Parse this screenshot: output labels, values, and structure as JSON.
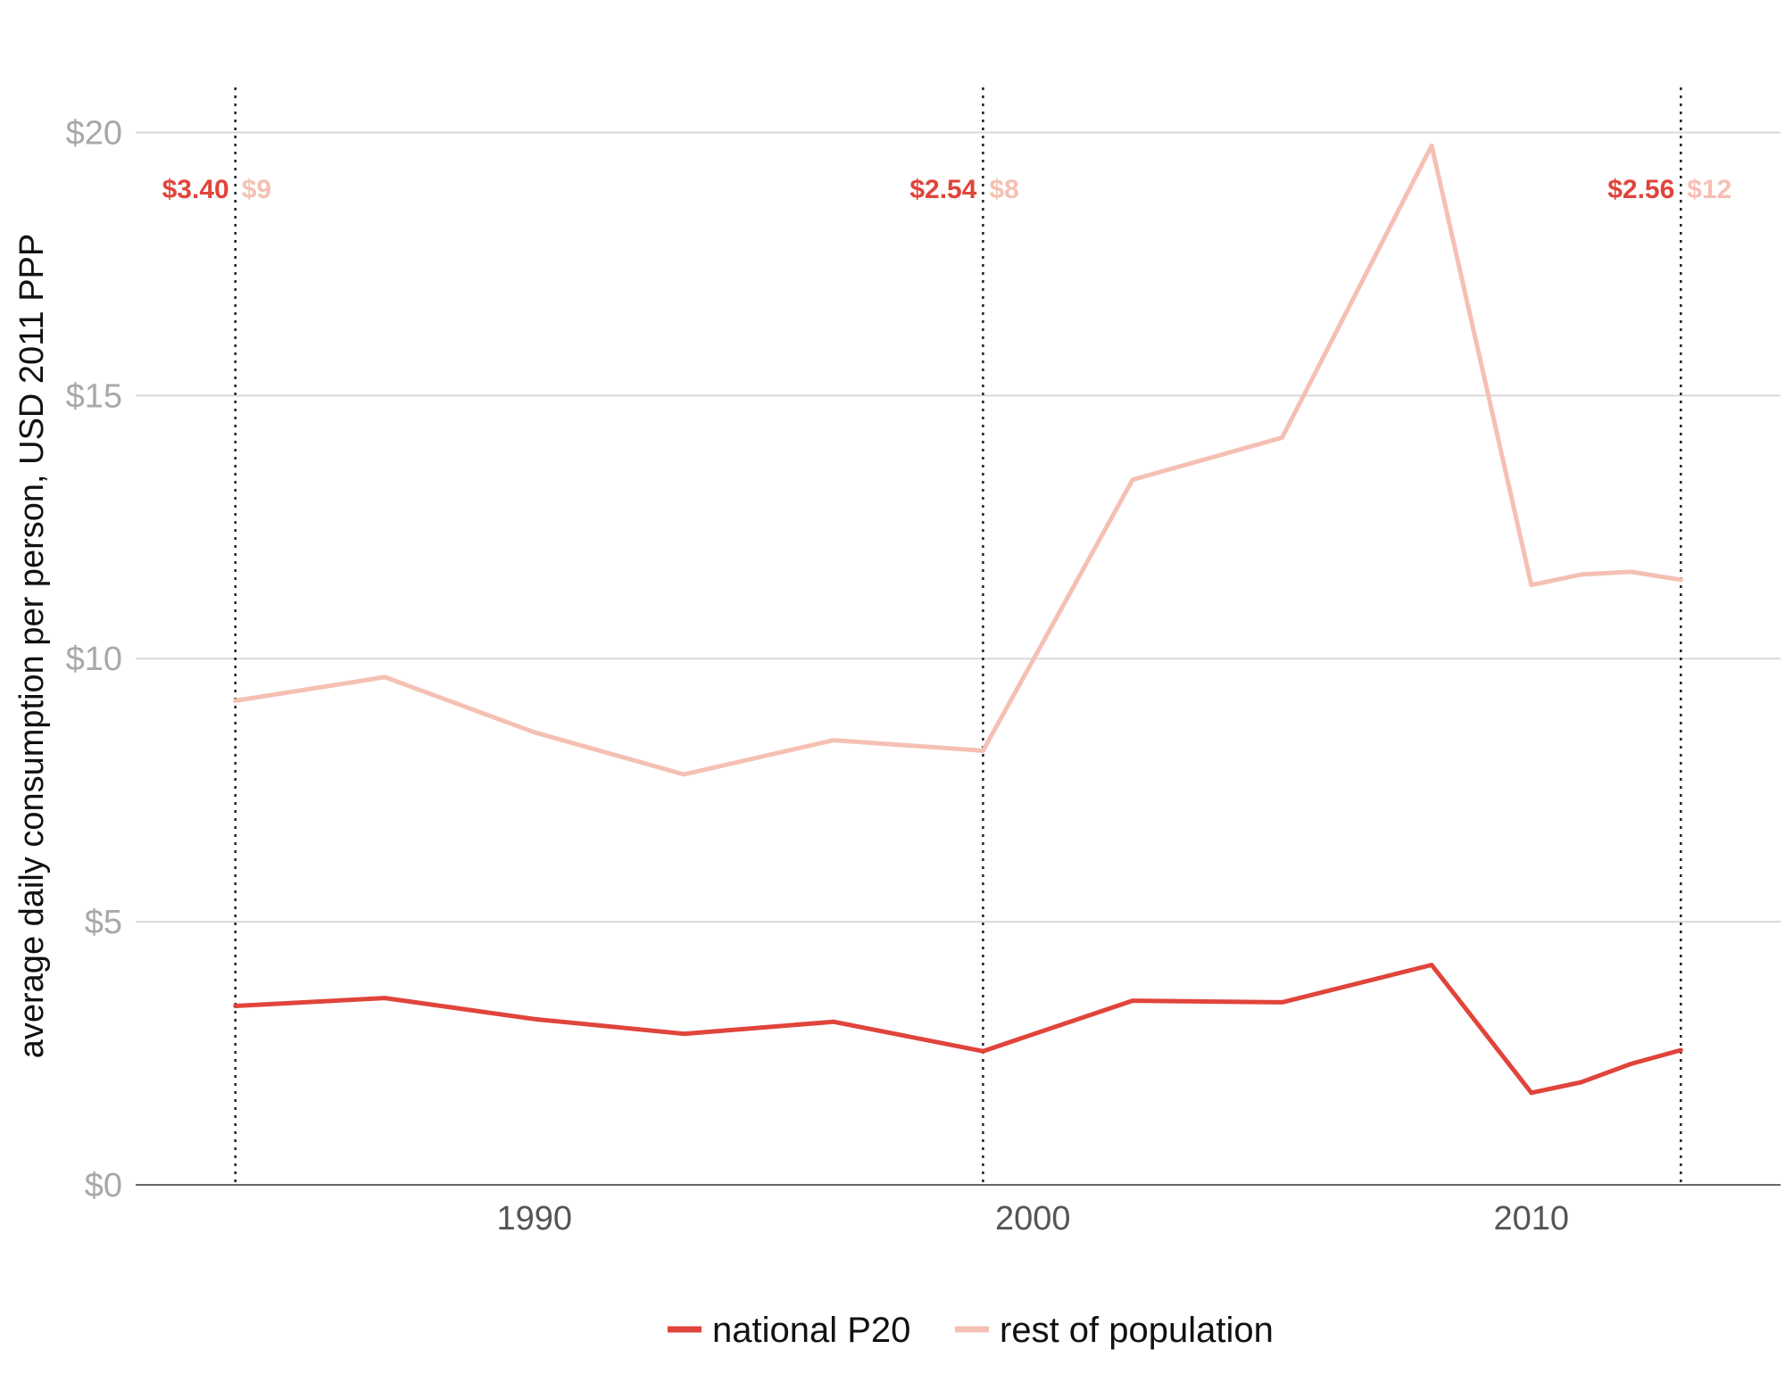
{
  "chart_data": {
    "type": "line",
    "title": "",
    "xlabel": "",
    "ylabel": "average daily consumption per person, USD 2011 PPP",
    "xlim": [
      1982,
      2015
    ],
    "ylim": [
      0,
      21.5
    ],
    "grid": true,
    "legend_position": "bottom",
    "x_ticks": [
      {
        "value": 1990,
        "label": "1990"
      },
      {
        "value": 2000,
        "label": "2000"
      },
      {
        "value": 2010,
        "label": "2010"
      }
    ],
    "y_ticks": [
      {
        "value": 0,
        "label": "$0"
      },
      {
        "value": 5,
        "label": "$5"
      },
      {
        "value": 10,
        "label": "$10"
      },
      {
        "value": 15,
        "label": "$15"
      },
      {
        "value": 20,
        "label": "$20"
      }
    ],
    "series": [
      {
        "name": "national P20",
        "color": "#e0443b",
        "points": [
          [
            1984,
            3.4
          ],
          [
            1987,
            3.55
          ],
          [
            1990,
            3.15
          ],
          [
            1993,
            2.87
          ],
          [
            1996,
            3.1
          ],
          [
            1999,
            2.54
          ],
          [
            2002,
            3.5
          ],
          [
            2005,
            3.47
          ],
          [
            2008,
            4.18
          ],
          [
            2010,
            1.75
          ],
          [
            2011,
            1.95
          ],
          [
            2012,
            2.3
          ],
          [
            2013,
            2.56
          ]
        ]
      },
      {
        "name": "rest of population",
        "color": "#f5c0b3",
        "points": [
          [
            1984,
            9.2
          ],
          [
            1987,
            9.65
          ],
          [
            1990,
            8.6
          ],
          [
            1993,
            7.8
          ],
          [
            1996,
            8.45
          ],
          [
            1999,
            8.25
          ],
          [
            2002,
            13.4
          ],
          [
            2005,
            14.2
          ],
          [
            2008,
            19.75
          ],
          [
            2010,
            11.4
          ],
          [
            2011,
            11.6
          ],
          [
            2012,
            11.65
          ],
          [
            2013,
            11.5
          ]
        ]
      }
    ],
    "reference_lines": [
      {
        "x": 1984,
        "p20_label": "$3.40",
        "rest_label": "$9"
      },
      {
        "x": 1999,
        "p20_label": "$2.54",
        "rest_label": "$8"
      },
      {
        "x": 2013,
        "p20_label": "$2.56",
        "rest_label": "$12"
      }
    ]
  }
}
